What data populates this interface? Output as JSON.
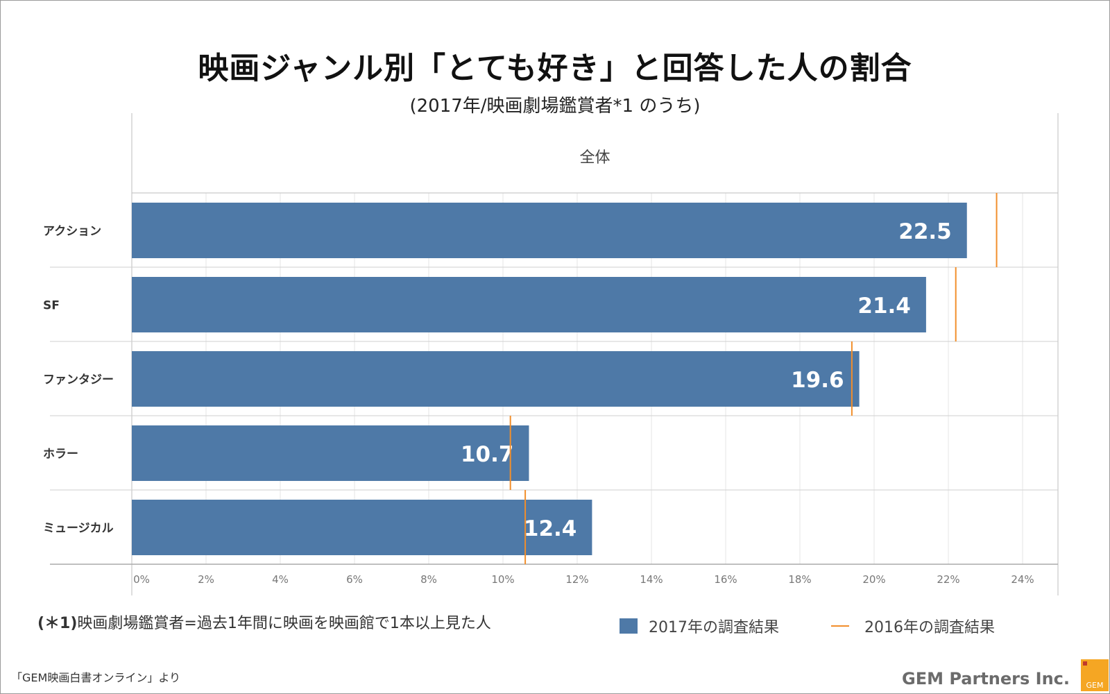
{
  "title": "映画ジャンル別「とても好き」と回答した人の割合",
  "subtitle": "(2017年/映画劇場鑑賞者*1 のうち)",
  "footnote": {
    "mark": "(＊1)",
    "text": "映画劇場鑑賞者=過去1年間に映画を映画館で1本以上見た人"
  },
  "legend": {
    "series_2017": "2017年の調査結果",
    "series_2016": "2016年の調査結果"
  },
  "source": "「GEM映画白書オンライン」より",
  "brand": "GEM Partners Inc.",
  "logo_text": "GEM",
  "colors": {
    "bar": "#4e79a7",
    "marker": "#f28e2b",
    "grid": "#e6e6e6",
    "axis": "#bdbdbd"
  },
  "chart_data": {
    "type": "bar",
    "orientation": "horizontal",
    "panel_header": "全体",
    "categories": [
      "アクション",
      "SF",
      "ファンタジー",
      "ホラー",
      "ミュージカル"
    ],
    "series": [
      {
        "name": "2017年の調査結果",
        "values": [
          22.5,
          21.4,
          19.6,
          10.7,
          12.4
        ],
        "style": "bar"
      },
      {
        "name": "2016年の調査結果",
        "values": [
          23.3,
          22.2,
          19.4,
          10.2,
          10.6
        ],
        "style": "reference-line"
      }
    ],
    "xlim": [
      0,
      25
    ],
    "xticks": [
      0,
      2,
      4,
      6,
      8,
      10,
      12,
      14,
      16,
      18,
      20,
      22,
      24
    ],
    "xtick_labels": [
      "0%",
      "2%",
      "4%",
      "6%",
      "8%",
      "10%",
      "12%",
      "14%",
      "16%",
      "18%",
      "20%",
      "22%",
      "24%"
    ],
    "data_labels": [
      "22.5",
      "21.4",
      "19.6",
      "10.7",
      "12.4"
    ],
    "grid": true
  }
}
